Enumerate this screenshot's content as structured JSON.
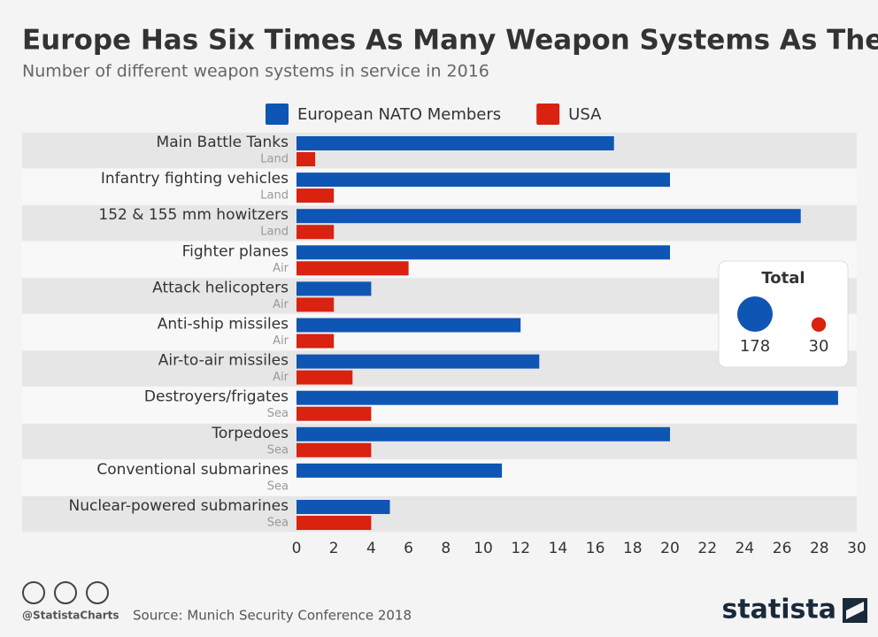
{
  "chart_data": {
    "type": "bar",
    "orientation": "horizontal",
    "title": "Europe Has Six Times As Many Weapon Systems As The U.S.",
    "subtitle": "Number of different weapon systems in service in 2016",
    "categories": [
      "Main Battle Tanks",
      "Infantry fighting vehicles",
      "152 & 155 mm howitzers",
      "Fighter planes",
      "Attack helicopters",
      "Anti-ship missiles",
      "Air-to-air missiles",
      "Destroyers/frigates",
      "Torpedoes",
      "Conventional submarines",
      "Nuclear-powered submarines"
    ],
    "domains": [
      "Land",
      "Land",
      "Land",
      "Air",
      "Air",
      "Air",
      "Air",
      "Sea",
      "Sea",
      "Sea",
      "Sea"
    ],
    "series": [
      {
        "name": "European NATO Members",
        "color": "#0f55b3",
        "values": [
          17,
          20,
          27,
          20,
          4,
          12,
          13,
          29,
          20,
          11,
          5
        ]
      },
      {
        "name": "USA",
        "color": "#d9220f",
        "values": [
          1,
          2,
          2,
          6,
          2,
          2,
          3,
          4,
          4,
          0,
          4
        ]
      }
    ],
    "xlim": [
      0,
      30
    ],
    "xticks": [
      0,
      2,
      4,
      6,
      8,
      10,
      12,
      14,
      16,
      18,
      20,
      22,
      24,
      26,
      28,
      30
    ],
    "totals": {
      "title": "Total",
      "values": [
        178,
        30
      ]
    },
    "source": "Source: Munich Security Conference 2018",
    "handle": "@StatistaCharts",
    "brand": "statista"
  }
}
